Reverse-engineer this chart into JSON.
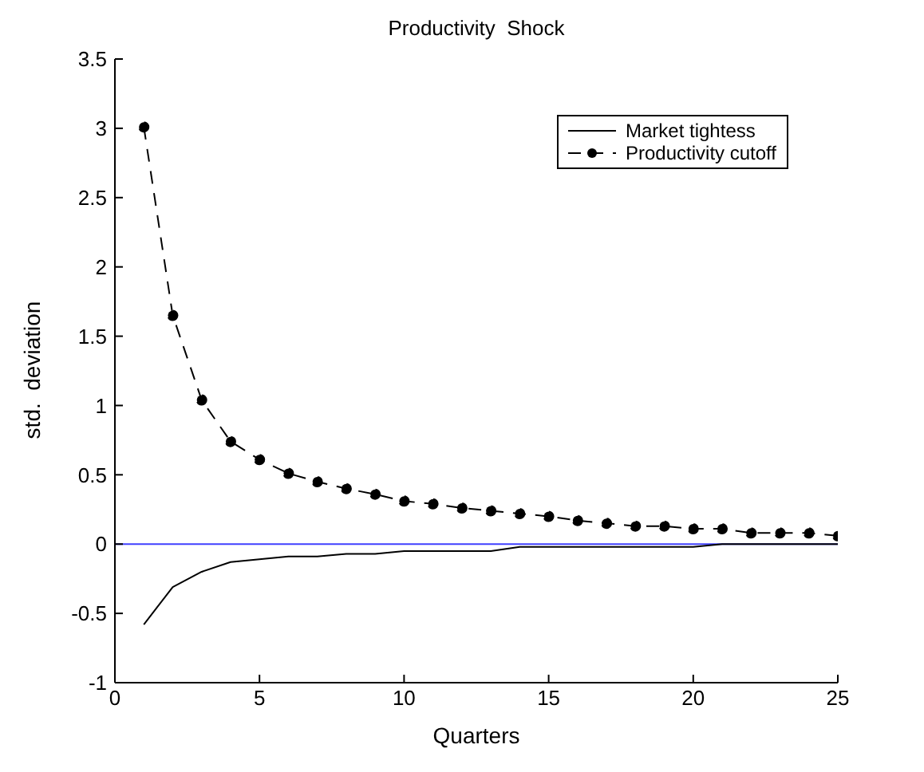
{
  "chart_data": {
    "type": "line",
    "title": "Productivity  Shock",
    "xlabel": "Quarters",
    "ylabel": "std.  deviation",
    "x": [
      1,
      2,
      3,
      4,
      5,
      6,
      7,
      8,
      9,
      10,
      11,
      12,
      13,
      14,
      15,
      16,
      17,
      18,
      19,
      20,
      21,
      22,
      23,
      24,
      25
    ],
    "series": [
      {
        "name": "Market tightess",
        "color": "#000000",
        "line_style": "solid",
        "marker": "none",
        "values": [
          -0.58,
          -0.31,
          -0.2,
          -0.13,
          -0.11,
          -0.09,
          -0.09,
          -0.07,
          -0.07,
          -0.05,
          -0.05,
          -0.05,
          -0.05,
          -0.02,
          -0.02,
          -0.02,
          -0.02,
          -0.02,
          -0.02,
          -0.02,
          0,
          0,
          0,
          0,
          0
        ]
      },
      {
        "name": "Productivity cutoff",
        "color": "#000000",
        "line_style": "dashed",
        "marker": "circle",
        "values": [
          3.01,
          1.65,
          1.04,
          0.74,
          0.61,
          0.51,
          0.45,
          0.4,
          0.36,
          0.31,
          0.29,
          0.26,
          0.24,
          0.22,
          0.2,
          0.17,
          0.15,
          0.13,
          0.13,
          0.11,
          0.11,
          0.08,
          0.08,
          0.08,
          0.06
        ]
      }
    ],
    "ref_lines": [
      {
        "axis": "y",
        "value": 0,
        "color": "#4040ff"
      }
    ],
    "xlim": [
      0,
      25
    ],
    "xticks": [
      0,
      5,
      10,
      15,
      20,
      25
    ],
    "ylim": [
      -1,
      3.5
    ],
    "yticks": [
      -1,
      -0.5,
      0,
      0.5,
      1,
      1.5,
      2,
      2.5,
      3,
      3.5
    ],
    "grid": false,
    "legend": "top right"
  }
}
